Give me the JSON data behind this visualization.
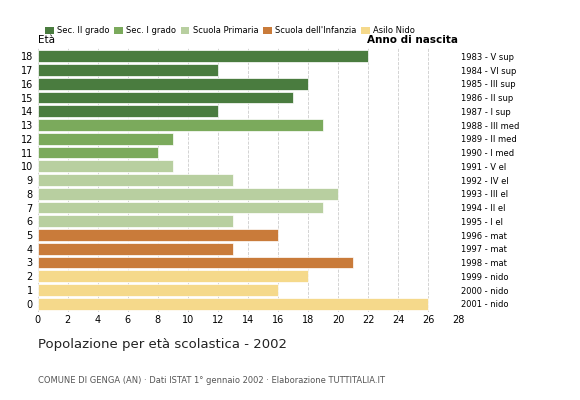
{
  "ages": [
    18,
    17,
    16,
    15,
    14,
    13,
    12,
    11,
    10,
    9,
    8,
    7,
    6,
    5,
    4,
    3,
    2,
    1,
    0
  ],
  "values": [
    22,
    12,
    18,
    17,
    12,
    19,
    9,
    8,
    9,
    13,
    20,
    19,
    13,
    16,
    13,
    21,
    18,
    16,
    26
  ],
  "colors": [
    "#4a7c3f",
    "#4a7c3f",
    "#4a7c3f",
    "#4a7c3f",
    "#4a7c3f",
    "#7baa5c",
    "#7baa5c",
    "#7baa5c",
    "#b8cfa0",
    "#b8cfa0",
    "#b8cfa0",
    "#b8cfa0",
    "#b8cfa0",
    "#c97b3a",
    "#c97b3a",
    "#c97b3a",
    "#f5d98b",
    "#f5d98b",
    "#f5d98b"
  ],
  "right_labels": [
    "1983 - V sup",
    "1984 - VI sup",
    "1985 - III sup",
    "1986 - II sup",
    "1987 - I sup",
    "1988 - III med",
    "1989 - II med",
    "1990 - I med",
    "1991 - V el",
    "1992 - IV el",
    "1993 - III el",
    "1994 - II el",
    "1995 - I el",
    "1996 - mat",
    "1997 - mat",
    "1998 - mat",
    "1999 - nido",
    "2000 - nido",
    "2001 - nido"
  ],
  "legend_labels": [
    "Sec. II grado",
    "Sec. I grado",
    "Scuola Primaria",
    "Scuola dell'Infanzia",
    "Asilo Nido"
  ],
  "legend_colors": [
    "#4a7c3f",
    "#7baa5c",
    "#b8cfa0",
    "#c97b3a",
    "#f5d98b"
  ],
  "eta_label": "Età",
  "anno_label": "Anno di nascita",
  "title": "Popolazione per età scolastica - 2002",
  "subtitle": "COMUNE DI GENGA (AN) · Dati ISTAT 1° gennaio 2002 · Elaborazione TUTTITALIA.IT",
  "xlim": [
    0,
    28
  ],
  "xticks": [
    0,
    2,
    4,
    6,
    8,
    10,
    12,
    14,
    16,
    18,
    20,
    22,
    24,
    26,
    28
  ],
  "background_color": "#ffffff",
  "grid_color": "#cccccc"
}
